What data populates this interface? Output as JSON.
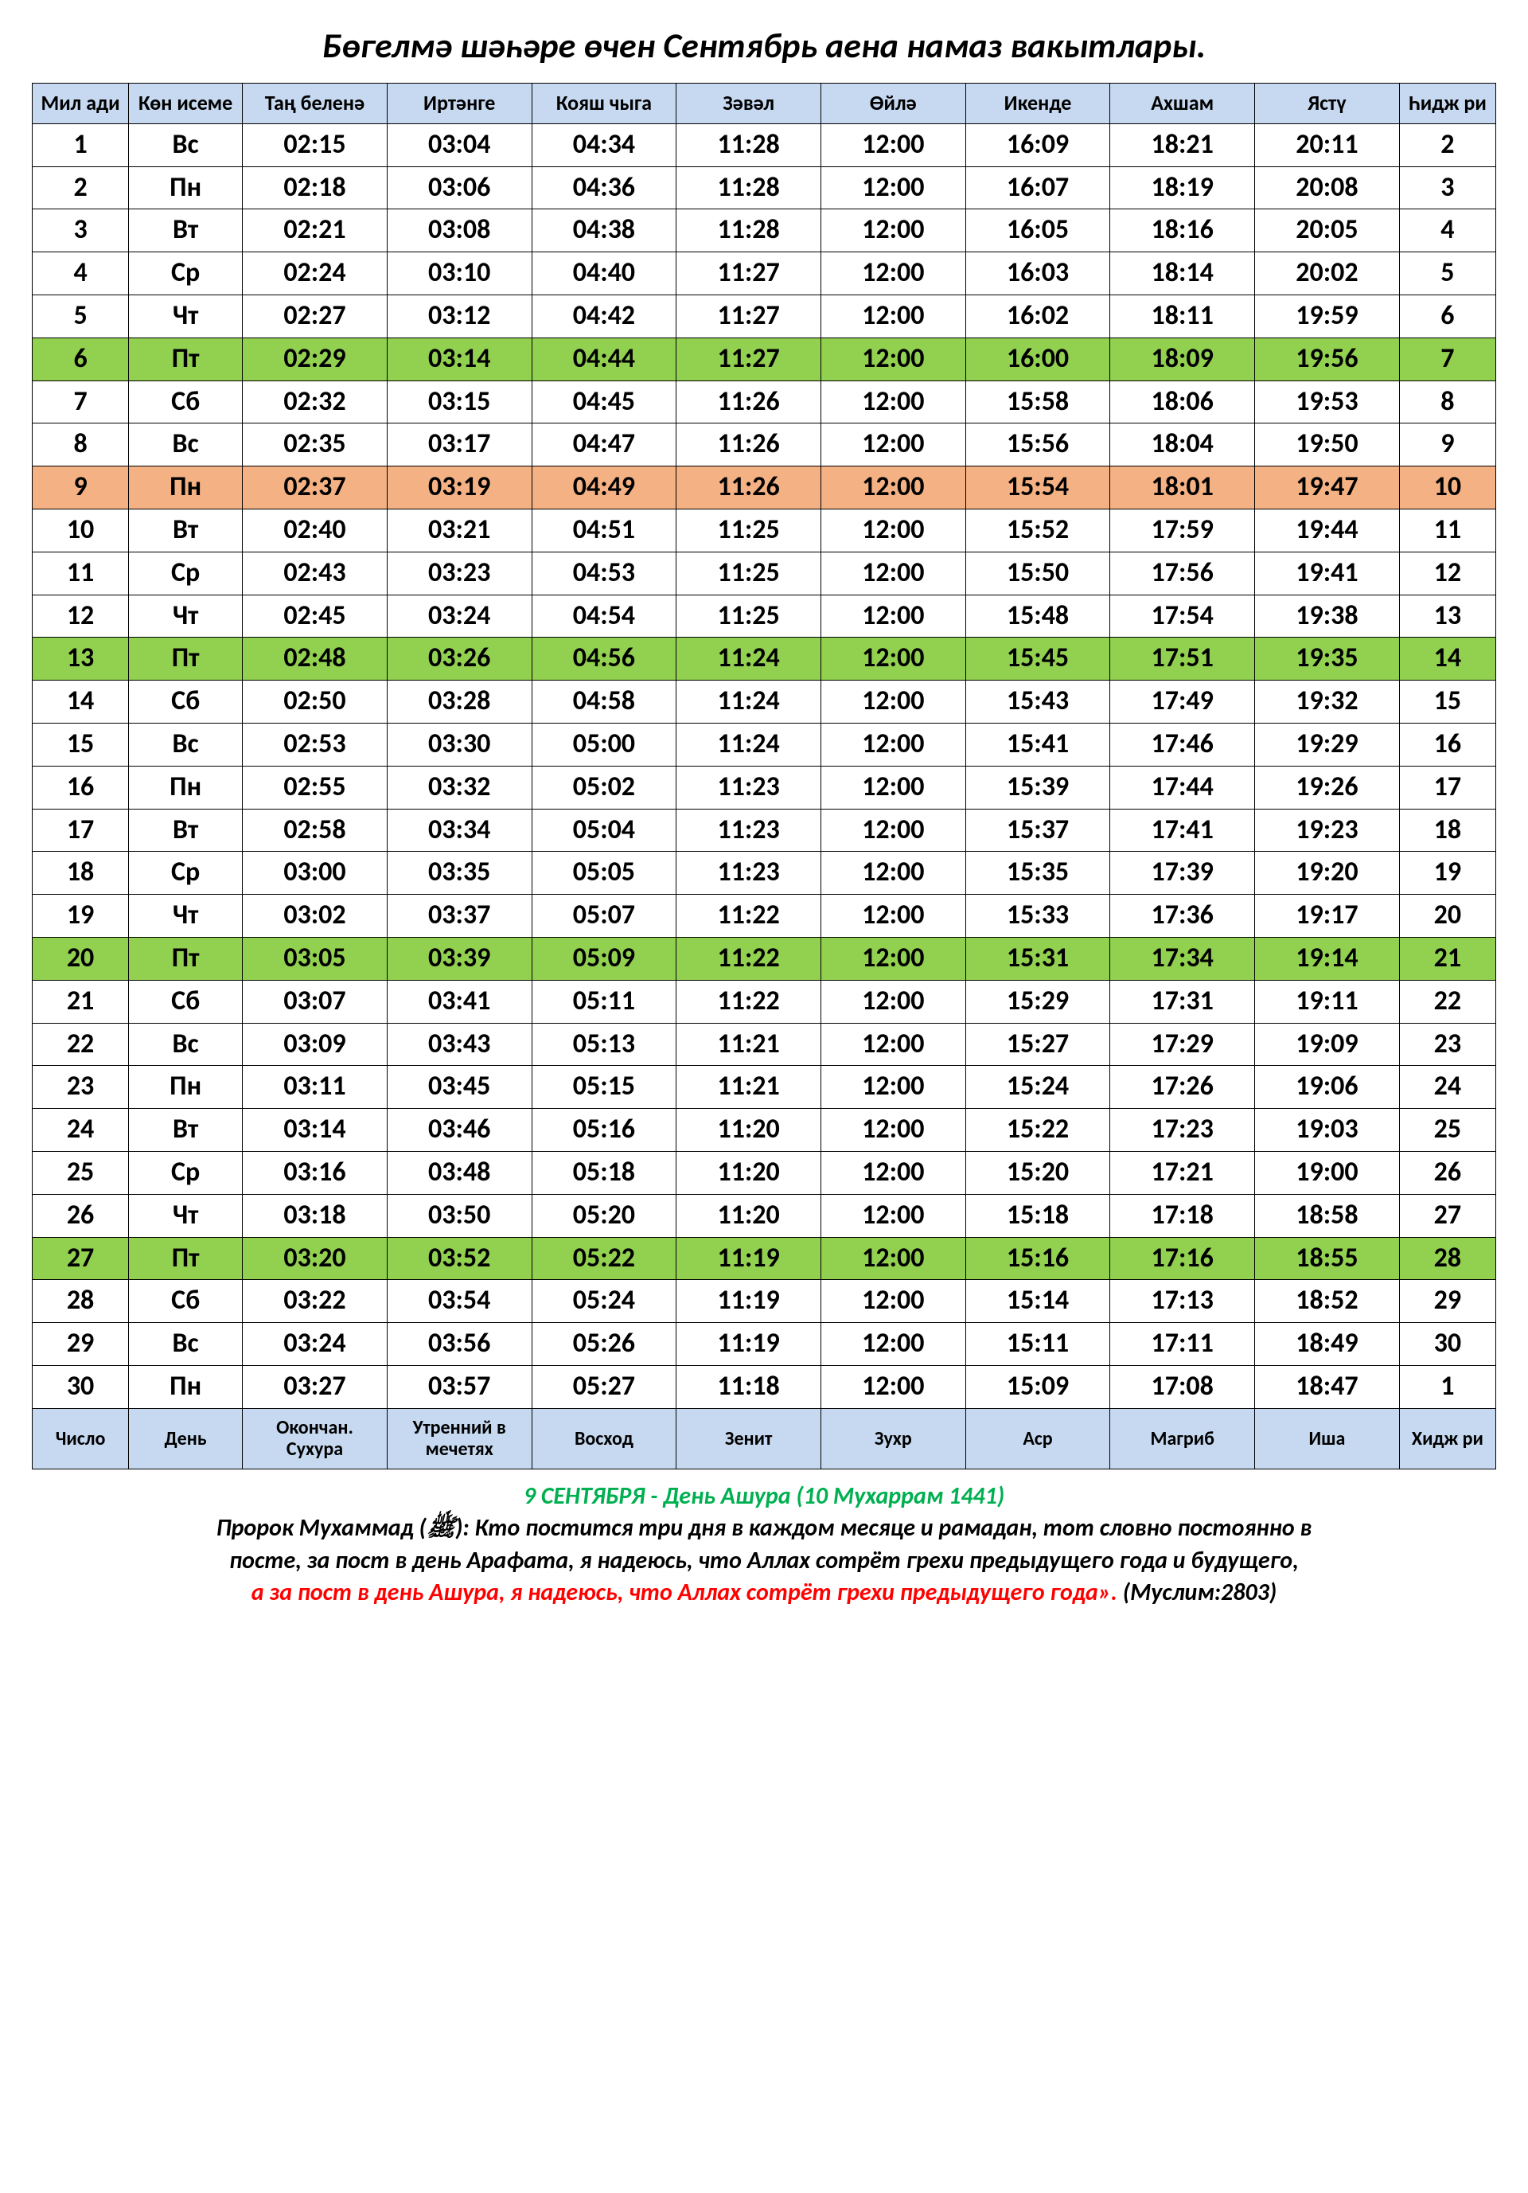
{
  "title": "Бөгелмә шәһәре өчен Сентябрь аена намаз вакытлары.",
  "headers": [
    "Мил ади",
    "Көн исеме",
    "Таң беленә",
    "Иртәнге",
    "Кояш чыга",
    "Зәвәл",
    "Өйлә",
    "Икенде",
    "Ахшам",
    "Ястү",
    "Һидж ри"
  ],
  "footers": [
    "Число",
    "День",
    "Окончан. Сухура",
    "Утренний в мечетях",
    "Восход",
    "Зенит",
    "Зухр",
    "Аср",
    "Магриб",
    "Иша",
    "Хидж ри"
  ],
  "columns_width_class": [
    "col-narrow",
    "col-day",
    "col-time",
    "col-time",
    "col-time",
    "col-time",
    "col-time",
    "col-time",
    "col-time",
    "col-time",
    "col-narrow"
  ],
  "row_highlight": {
    "green": [
      6,
      13,
      20,
      27
    ],
    "orange": [
      9
    ]
  },
  "colors": {
    "header_bg": "#c6d9f0",
    "green_bg": "#92d050",
    "orange_bg": "#f4b183",
    "ashura_text": "#00b050",
    "red_text": "#ff0000"
  },
  "rows": [
    [
      "1",
      "Вс",
      "02:15",
      "03:04",
      "04:34",
      "11:28",
      "12:00",
      "16:09",
      "18:21",
      "20:11",
      "2"
    ],
    [
      "2",
      "Пн",
      "02:18",
      "03:06",
      "04:36",
      "11:28",
      "12:00",
      "16:07",
      "18:19",
      "20:08",
      "3"
    ],
    [
      "3",
      "Вт",
      "02:21",
      "03:08",
      "04:38",
      "11:28",
      "12:00",
      "16:05",
      "18:16",
      "20:05",
      "4"
    ],
    [
      "4",
      "Ср",
      "02:24",
      "03:10",
      "04:40",
      "11:27",
      "12:00",
      "16:03",
      "18:14",
      "20:02",
      "5"
    ],
    [
      "5",
      "Чт",
      "02:27",
      "03:12",
      "04:42",
      "11:27",
      "12:00",
      "16:02",
      "18:11",
      "19:59",
      "6"
    ],
    [
      "6",
      "Пт",
      "02:29",
      "03:14",
      "04:44",
      "11:27",
      "12:00",
      "16:00",
      "18:09",
      "19:56",
      "7"
    ],
    [
      "7",
      "Сб",
      "02:32",
      "03:15",
      "04:45",
      "11:26",
      "12:00",
      "15:58",
      "18:06",
      "19:53",
      "8"
    ],
    [
      "8",
      "Вс",
      "02:35",
      "03:17",
      "04:47",
      "11:26",
      "12:00",
      "15:56",
      "18:04",
      "19:50",
      "9"
    ],
    [
      "9",
      "Пн",
      "02:37",
      "03:19",
      "04:49",
      "11:26",
      "12:00",
      "15:54",
      "18:01",
      "19:47",
      "10"
    ],
    [
      "10",
      "Вт",
      "02:40",
      "03:21",
      "04:51",
      "11:25",
      "12:00",
      "15:52",
      "17:59",
      "19:44",
      "11"
    ],
    [
      "11",
      "Ср",
      "02:43",
      "03:23",
      "04:53",
      "11:25",
      "12:00",
      "15:50",
      "17:56",
      "19:41",
      "12"
    ],
    [
      "12",
      "Чт",
      "02:45",
      "03:24",
      "04:54",
      "11:25",
      "12:00",
      "15:48",
      "17:54",
      "19:38",
      "13"
    ],
    [
      "13",
      "Пт",
      "02:48",
      "03:26",
      "04:56",
      "11:24",
      "12:00",
      "15:45",
      "17:51",
      "19:35",
      "14"
    ],
    [
      "14",
      "Сб",
      "02:50",
      "03:28",
      "04:58",
      "11:24",
      "12:00",
      "15:43",
      "17:49",
      "19:32",
      "15"
    ],
    [
      "15",
      "Вс",
      "02:53",
      "03:30",
      "05:00",
      "11:24",
      "12:00",
      "15:41",
      "17:46",
      "19:29",
      "16"
    ],
    [
      "16",
      "Пн",
      "02:55",
      "03:32",
      "05:02",
      "11:23",
      "12:00",
      "15:39",
      "17:44",
      "19:26",
      "17"
    ],
    [
      "17",
      "Вт",
      "02:58",
      "03:34",
      "05:04",
      "11:23",
      "12:00",
      "15:37",
      "17:41",
      "19:23",
      "18"
    ],
    [
      "18",
      "Ср",
      "03:00",
      "03:35",
      "05:05",
      "11:23",
      "12:00",
      "15:35",
      "17:39",
      "19:20",
      "19"
    ],
    [
      "19",
      "Чт",
      "03:02",
      "03:37",
      "05:07",
      "11:22",
      "12:00",
      "15:33",
      "17:36",
      "19:17",
      "20"
    ],
    [
      "20",
      "Пт",
      "03:05",
      "03:39",
      "05:09",
      "11:22",
      "12:00",
      "15:31",
      "17:34",
      "19:14",
      "21"
    ],
    [
      "21",
      "Сб",
      "03:07",
      "03:41",
      "05:11",
      "11:22",
      "12:00",
      "15:29",
      "17:31",
      "19:11",
      "22"
    ],
    [
      "22",
      "Вс",
      "03:09",
      "03:43",
      "05:13",
      "11:21",
      "12:00",
      "15:27",
      "17:29",
      "19:09",
      "23"
    ],
    [
      "23",
      "Пн",
      "03:11",
      "03:45",
      "05:15",
      "11:21",
      "12:00",
      "15:24",
      "17:26",
      "19:06",
      "24"
    ],
    [
      "24",
      "Вт",
      "03:14",
      "03:46",
      "05:16",
      "11:20",
      "12:00",
      "15:22",
      "17:23",
      "19:03",
      "25"
    ],
    [
      "25",
      "Ср",
      "03:16",
      "03:48",
      "05:18",
      "11:20",
      "12:00",
      "15:20",
      "17:21",
      "19:00",
      "26"
    ],
    [
      "26",
      "Чт",
      "03:18",
      "03:50",
      "05:20",
      "11:20",
      "12:00",
      "15:18",
      "17:18",
      "18:58",
      "27"
    ],
    [
      "27",
      "Пт",
      "03:20",
      "03:52",
      "05:22",
      "11:19",
      "12:00",
      "15:16",
      "17:16",
      "18:55",
      "28"
    ],
    [
      "28",
      "Сб",
      "03:22",
      "03:54",
      "05:24",
      "11:19",
      "12:00",
      "15:14",
      "17:13",
      "18:52",
      "29"
    ],
    [
      "29",
      "Вс",
      "03:24",
      "03:56",
      "05:26",
      "11:19",
      "12:00",
      "15:11",
      "17:11",
      "18:49",
      "30"
    ],
    [
      "30",
      "Пн",
      "03:27",
      "03:57",
      "05:27",
      "11:18",
      "12:00",
      "15:09",
      "17:08",
      "18:47",
      "1"
    ]
  ],
  "footer_text": {
    "ashura": "9 СЕНТЯБРЯ  - День  Ашура (10 Мухаррам 1441)",
    "hadith_line1": "Пророк Мухаммад (ﷺ): Кто постится три дня в каждом месяце и рамадан, тот словно постоянно в",
    "hadith_line2": "посте, за пост в день Арафата, я надеюсь, что Аллах сотрёт грехи предыдущего года и будущего,",
    "hadith_red": "а за пост в день Ашура, я надеюсь, что Аллах сотрёт грехи предыдущего года».",
    "hadith_ref": " (Муслим:2803)"
  }
}
